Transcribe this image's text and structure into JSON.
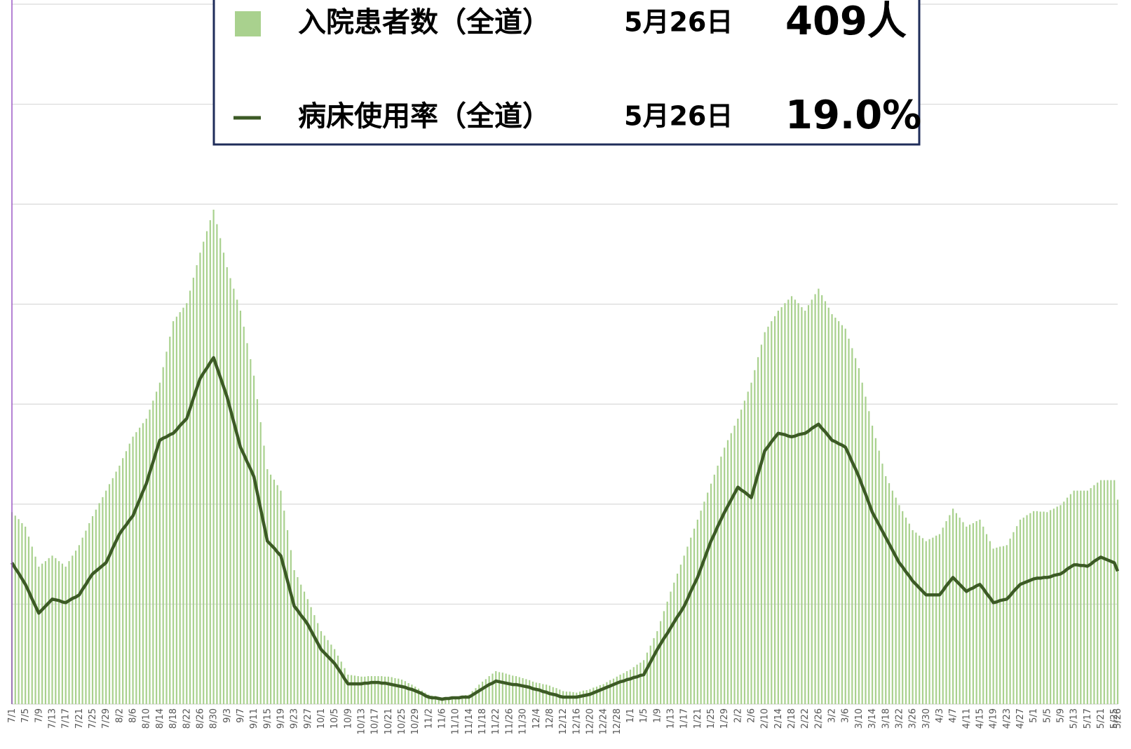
{
  "chart_data": {
    "type": "bar_line",
    "categories": [
      "7/1",
      null,
      null,
      null,
      "7/5",
      null,
      null,
      null,
      "7/9",
      null,
      null,
      null,
      "7/13",
      null,
      null,
      null,
      "7/17",
      null,
      null,
      null,
      "7/21",
      null,
      null,
      null,
      "7/25",
      null,
      null,
      null,
      "7/29",
      null,
      null,
      null,
      "8/2",
      null,
      null,
      null,
      "8/6",
      null,
      null,
      null,
      "8/10",
      null,
      null,
      null,
      "8/14",
      null,
      null,
      null,
      "8/18",
      null,
      null,
      null,
      "8/22",
      null,
      null,
      null,
      "8/26",
      null,
      null,
      null,
      "8/30",
      null,
      null,
      null,
      "9/3",
      null,
      null,
      null,
      "9/7",
      null,
      null,
      null,
      "9/11",
      null,
      null,
      null,
      "9/15",
      null,
      null,
      null,
      "9/19",
      null,
      null,
      null,
      "9/23",
      null,
      null,
      null,
      "9/27",
      null,
      null,
      null,
      "10/1",
      null,
      null,
      null,
      "10/5",
      null,
      null,
      null,
      "10/9",
      null,
      null,
      null,
      "10/13",
      null,
      null,
      null,
      "10/17",
      null,
      null,
      null,
      "10/21",
      null,
      null,
      null,
      "10/25",
      null,
      null,
      null,
      "10/29",
      null,
      null,
      null,
      "11/2",
      null,
      null,
      null,
      "11/6",
      null,
      null,
      null,
      "11/10",
      null,
      null,
      null,
      "11/14",
      null,
      null,
      null,
      "11/18",
      null,
      null,
      null,
      "11/22",
      null,
      null,
      null,
      "11/26",
      null,
      null,
      null,
      "11/30",
      null,
      null,
      null,
      "12/4",
      null,
      null,
      null,
      "12/8",
      null,
      null,
      null,
      "12/12",
      null,
      null,
      null,
      "12/16",
      null,
      null,
      null,
      "12/20",
      null,
      null,
      null,
      "12/24",
      null,
      null,
      null,
      "12/28",
      null,
      null,
      null,
      "1/1",
      null,
      null,
      null,
      "1/5",
      null,
      null,
      null,
      "1/9",
      null,
      null,
      null,
      "1/13",
      null,
      null,
      null,
      "1/17",
      null,
      null,
      null,
      "1/21",
      null,
      null,
      null,
      "1/25",
      null,
      null,
      null,
      "1/29",
      null,
      null,
      null,
      "2/2",
      null,
      null,
      null,
      "2/6",
      null,
      null,
      null,
      "2/10",
      null,
      null,
      null,
      "2/14",
      null,
      null,
      null,
      "2/18",
      null,
      null,
      null,
      "2/22",
      null,
      null,
      null,
      "2/26",
      null,
      null,
      null,
      "3/2",
      null,
      null,
      null,
      "3/6",
      null,
      null,
      null,
      "3/10",
      null,
      null,
      null,
      "3/14",
      null,
      null,
      null,
      "3/18",
      null,
      null,
      null,
      "3/22",
      null,
      null,
      null,
      "3/26",
      null,
      null,
      null,
      "3/30",
      null,
      null,
      null,
      "4/3",
      null,
      null,
      null,
      "4/7",
      null,
      null,
      null,
      "4/11",
      null,
      null,
      null,
      "4/15",
      null,
      null,
      null,
      "4/19",
      null,
      null,
      null,
      "4/23",
      null,
      null,
      null,
      "4/27",
      null,
      null,
      null,
      "5/1",
      null,
      null,
      null,
      "5/5",
      null,
      null,
      null,
      "5/9",
      null,
      null,
      null,
      "5/13",
      null,
      null,
      null,
      "5/17",
      null,
      null,
      null,
      "5/21",
      null,
      null,
      null,
      "5/25",
      "5/26"
    ],
    "series": [
      {
        "name": "入院患者数（全道）",
        "color": "#a9d18e",
        "latest_date": "5月26日",
        "latest_label": "409人",
        "values": [
          384,
          377,
          370,
          362,
          355,
          335,
          315,
          295,
          275,
          281,
          286,
          292,
          297,
          292,
          286,
          281,
          275,
          286,
          297,
          307,
          318,
          333,
          347,
          362,
          376,
          389,
          402,
          414,
          427,
          440,
          452,
          465,
          477,
          492,
          506,
          521,
          535,
          544,
          553,
          562,
          571,
          589,
          607,
          625,
          643,
          674,
          705,
          735,
          766,
          775,
          784,
          793,
          802,
          827,
          853,
          878,
          903,
          925,
          946,
          968,
          989,
          960,
          932,
          903,
          874,
          852,
          831,
          809,
          787,
          755,
          722,
          690,
          657,
          610,
          564,
          517,
          470,
          459,
          449,
          438,
          427,
          387,
          348,
          308,
          268,
          254,
          239,
          225,
          210,
          194,
          178,
          162,
          146,
          137,
          128,
          119,
          110,
          97,
          85,
          72,
          59,
          58,
          57,
          56,
          55,
          55,
          56,
          56,
          56,
          56,
          56,
          55,
          55,
          54,
          52,
          51,
          49,
          46,
          42,
          39,
          35,
          31,
          27,
          23,
          19,
          17,
          16,
          14,
          12,
          13,
          13,
          14,
          14,
          15,
          17,
          18,
          19,
          26,
          32,
          39,
          45,
          50,
          56,
          61,
          66,
          64,
          63,
          61,
          59,
          57,
          56,
          54,
          52,
          50,
          48,
          45,
          43,
          42,
          40,
          39,
          37,
          34,
          32,
          29,
          26,
          25,
          25,
          24,
          23,
          25,
          27,
          28,
          30,
          33,
          35,
          38,
          40,
          44,
          48,
          51,
          55,
          59,
          62,
          66,
          69,
          74,
          79,
          83,
          88,
          103,
          117,
          132,
          146,
          166,
          186,
          205,
          225,
          243,
          261,
          279,
          297,
          315,
          333,
          351,
          369,
          387,
          405,
          423,
          441,
          459,
          477,
          495,
          513,
          528,
          542,
          557,
          571,
          589,
          607,
          625,
          643,
          668,
          694,
          719,
          744,
          755,
          766,
          776,
          787,
          794,
          802,
          809,
          816,
          809,
          802,
          794,
          787,
          798,
          809,
          820,
          831,
          818,
          806,
          793,
          780,
          773,
          766,
          758,
          751,
          731,
          712,
          692,
          672,
          643,
          615,
          586,
          557,
          532,
          507,
          481,
          456,
          442,
          427,
          413,
          398,
          386,
          373,
          361,
          348,
          343,
          337,
          332,
          326,
          330,
          333,
          337,
          340,
          353,
          366,
          378,
          391,
          382,
          373,
          364,
          355,
          359,
          362,
          366,
          369,
          355,
          340,
          326,
          311,
          313,
          315,
          316,
          318,
          331,
          344,
          356,
          369,
          373,
          378,
          382,
          386,
          386,
          385,
          385,
          384,
          388,
          391,
          395,
          398,
          405,
          413,
          420,
          427,
          427,
          427,
          427,
          427,
          432,
          438,
          443,
          448,
          448,
          448,
          448,
          448,
          409
        ]
      },
      {
        "name": "病床使用率（全道）",
        "color": "#3c5a25",
        "axis": "y2",
        "latest_date": "5月26日",
        "latest_label": "19.0%",
        "values": [
          20.2,
          19.4,
          18.7,
          17.9,
          17.1,
          16.1,
          15.0,
          14.0,
          13.0,
          13.5,
          14.0,
          14.5,
          15.0,
          14.9,
          14.8,
          14.6,
          14.5,
          14.8,
          15.1,
          15.3,
          15.6,
          16.4,
          17.1,
          17.9,
          18.6,
          19.0,
          19.4,
          19.8,
          20.2,
          21.2,
          22.3,
          23.3,
          24.3,
          25.0,
          25.6,
          26.3,
          26.9,
          28.1,
          29.2,
          30.4,
          31.5,
          33.1,
          34.6,
          36.2,
          37.7,
          38.0,
          38.2,
          38.5,
          38.7,
          39.2,
          39.8,
          40.3,
          40.8,
          42.2,
          43.7,
          45.1,
          46.5,
          47.3,
          48.0,
          48.8,
          49.5,
          48.1,
          46.7,
          45.3,
          43.9,
          42.1,
          40.3,
          38.5,
          36.7,
          35.7,
          34.6,
          33.6,
          32.5,
          30.2,
          27.9,
          25.6,
          23.3,
          22.8,
          22.3,
          21.7,
          21.2,
          19.4,
          17.6,
          15.8,
          14.0,
          13.4,
          12.7,
          12.1,
          11.4,
          10.5,
          9.6,
          8.7,
          7.8,
          7.3,
          6.8,
          6.3,
          5.8,
          5.1,
          4.4,
          3.6,
          2.9,
          2.9,
          2.9,
          2.9,
          2.9,
          3.0,
          3.0,
          3.1,
          3.1,
          3.1,
          3.0,
          3.0,
          2.9,
          2.8,
          2.7,
          2.6,
          2.5,
          2.4,
          2.2,
          2.1,
          1.9,
          1.7,
          1.5,
          1.2,
          1.0,
          0.9,
          0.9,
          0.8,
          0.7,
          0.8,
          0.8,
          0.9,
          0.9,
          0.9,
          1.0,
          1.0,
          1.0,
          1.3,
          1.6,
          1.9,
          2.2,
          2.5,
          2.8,
          3.0,
          3.3,
          3.2,
          3.1,
          3.0,
          2.9,
          2.8,
          2.8,
          2.7,
          2.6,
          2.5,
          2.4,
          2.2,
          2.1,
          2.0,
          1.8,
          1.7,
          1.5,
          1.4,
          1.3,
          1.1,
          1.0,
          1.0,
          1.0,
          1.0,
          1.0,
          1.1,
          1.2,
          1.3,
          1.4,
          1.6,
          1.8,
          2.0,
          2.2,
          2.4,
          2.6,
          2.8,
          3.0,
          3.2,
          3.3,
          3.5,
          3.6,
          3.8,
          3.9,
          4.1,
          4.2,
          5.1,
          6.0,
          6.9,
          7.8,
          8.6,
          9.4,
          10.1,
          10.9,
          11.7,
          12.5,
          13.2,
          14.0,
          15.0,
          16.1,
          17.1,
          18.1,
          19.4,
          20.7,
          22.0,
          23.3,
          24.3,
          25.4,
          26.4,
          27.4,
          28.3,
          29.2,
          30.1,
          31.0,
          30.6,
          30.3,
          29.9,
          29.5,
          31.2,
          32.9,
          34.5,
          36.2,
          36.8,
          37.5,
          38.1,
          38.7,
          38.6,
          38.5,
          38.3,
          38.2,
          38.3,
          38.5,
          38.6,
          38.7,
          39.0,
          39.4,
          39.7,
          40.0,
          39.4,
          38.9,
          38.3,
          37.7,
          37.5,
          37.2,
          37.0,
          36.7,
          35.7,
          34.6,
          33.6,
          32.5,
          31.2,
          30.0,
          28.7,
          27.4,
          26.5,
          25.6,
          24.7,
          23.8,
          22.9,
          22.0,
          21.1,
          20.2,
          19.6,
          18.9,
          18.3,
          17.6,
          17.1,
          16.6,
          16.1,
          15.6,
          15.6,
          15.6,
          15.6,
          15.6,
          16.2,
          16.9,
          17.5,
          18.1,
          17.6,
          17.1,
          16.6,
          16.1,
          16.4,
          16.6,
          16.9,
          17.1,
          16.5,
          15.8,
          15.2,
          14.5,
          14.6,
          14.8,
          14.9,
          15.0,
          15.5,
          16.1,
          16.6,
          17.1,
          17.3,
          17.5,
          17.7,
          17.9,
          18.0,
          18.0,
          18.1,
          18.1,
          18.2,
          18.4,
          18.5,
          18.6,
          18.9,
          19.3,
          19.6,
          19.9,
          19.9,
          19.8,
          19.8,
          19.7,
          20.0,
          20.4,
          20.7,
          21.0,
          20.8,
          20.6,
          20.4,
          20.2,
          19.0
        ]
      }
    ],
    "ylim": [
      0,
      1400
    ],
    "yticks": [
      0,
      200,
      400,
      600,
      800,
      1000,
      1200,
      1400
    ],
    "y2lim": [
      0,
      100
    ],
    "grid": true
  }
}
